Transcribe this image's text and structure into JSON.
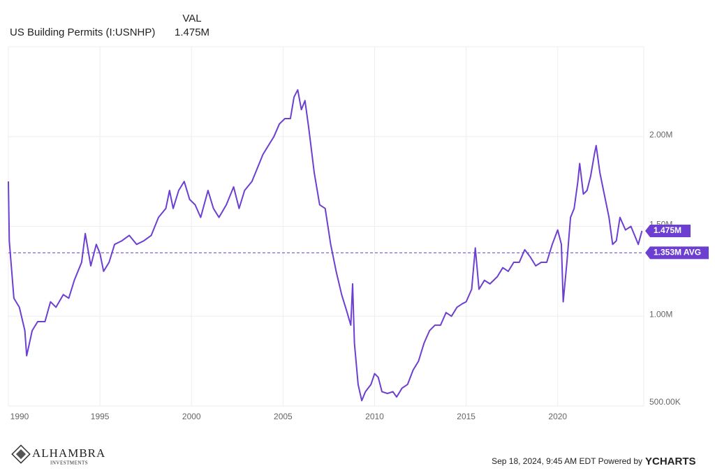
{
  "chart_data": {
    "type": "line",
    "header": {
      "column": "VAL"
    },
    "series": [
      {
        "name": "US Building Permits (I:USNHP)",
        "color": "#6c3fd1",
        "values": [
          1.75,
          1.42,
          1.1,
          1.05,
          0.92,
          0.78,
          0.92,
          0.97,
          0.97,
          1.08,
          1.05,
          1.12,
          1.1,
          1.2,
          1.3,
          1.46,
          1.28,
          1.4,
          1.35,
          1.25,
          1.3,
          1.4,
          1.42,
          1.45,
          1.4,
          1.42,
          1.45,
          1.55,
          1.6,
          1.7,
          1.6,
          1.7,
          1.75,
          1.65,
          1.62,
          1.55,
          1.7,
          1.6,
          1.55,
          1.62,
          1.72,
          1.6,
          1.7,
          1.75,
          1.85,
          1.9,
          1.95,
          2.0,
          2.07,
          2.1,
          2.1,
          2.22,
          2.26,
          2.15,
          2.2,
          2.05,
          1.8,
          1.62,
          1.6,
          1.4,
          1.25,
          1.12,
          1.02,
          0.95,
          1.18,
          0.85,
          0.62,
          0.53,
          0.58,
          0.62,
          0.68,
          0.66,
          0.58,
          0.57,
          0.58,
          0.55,
          0.6,
          0.62,
          0.7,
          0.75,
          0.85,
          0.92,
          0.95,
          0.95,
          1.02,
          1.0,
          1.05,
          1.07,
          1.08,
          1.15,
          1.38,
          1.15,
          1.2,
          1.18,
          1.22,
          1.27,
          1.25,
          1.3,
          1.3,
          1.37,
          1.33,
          1.28,
          1.3,
          1.3,
          1.4,
          1.48,
          1.4,
          1.08,
          1.3,
          1.55,
          1.6,
          1.75,
          1.85,
          1.68,
          1.7,
          1.78,
          1.9,
          1.95,
          1.8,
          1.7,
          1.55,
          1.4,
          1.42,
          1.55,
          1.48,
          1.5,
          1.45,
          1.4,
          1.475
        ]
      }
    ],
    "x": [
      1990.0,
      1990.05,
      1990.3,
      1990.6,
      1990.9,
      1991.0,
      1991.3,
      1991.6,
      1992.0,
      1992.3,
      1992.6,
      1993.0,
      1993.3,
      1993.6,
      1994.0,
      1994.2,
      1994.5,
      1994.8,
      1995.0,
      1995.2,
      1995.5,
      1995.8,
      1996.2,
      1996.6,
      1997.0,
      1997.4,
      1997.8,
      1998.2,
      1998.6,
      1998.8,
      1999.0,
      1999.3,
      1999.6,
      1999.9,
      2000.2,
      2000.5,
      2000.9,
      2001.2,
      2001.5,
      2001.9,
      2002.3,
      2002.6,
      2002.9,
      2003.3,
      2003.7,
      2003.9,
      2004.2,
      2004.5,
      2004.8,
      2005.1,
      2005.4,
      2005.6,
      2005.8,
      2006.0,
      2006.2,
      2006.4,
      2006.7,
      2007.0,
      2007.3,
      2007.6,
      2007.9,
      2008.2,
      2008.5,
      2008.7,
      2008.8,
      2008.9,
      2009.1,
      2009.3,
      2009.5,
      2009.8,
      2010.0,
      2010.2,
      2010.4,
      2010.7,
      2011.0,
      2011.2,
      2011.5,
      2011.8,
      2012.1,
      2012.4,
      2012.7,
      2013.0,
      2013.3,
      2013.6,
      2013.9,
      2014.2,
      2014.5,
      2014.8,
      2015.0,
      2015.3,
      2015.5,
      2015.7,
      2016.0,
      2016.3,
      2016.7,
      2017.0,
      2017.3,
      2017.6,
      2017.9,
      2018.2,
      2018.5,
      2018.8,
      2019.1,
      2019.4,
      2019.7,
      2020.0,
      2020.2,
      2020.3,
      2020.5,
      2020.7,
      2020.9,
      2021.1,
      2021.2,
      2021.4,
      2021.6,
      2021.8,
      2022.0,
      2022.1,
      2022.3,
      2022.5,
      2022.8,
      2023.0,
      2023.2,
      2023.4,
      2023.7,
      2024.0,
      2024.2,
      2024.4,
      2024.6
    ],
    "current": {
      "value": 1.475,
      "label": "1.475M"
    },
    "average": {
      "value": 1.353,
      "label": "1.353M AVG"
    },
    "xlim": [
      1990,
      2024.7
    ],
    "xticks": [
      1990,
      1995,
      2000,
      2005,
      2010,
      2015,
      2020
    ],
    "ylim": [
      0.5,
      2.5
    ],
    "yticks": [
      {
        "value": 0.5,
        "label": "500.00K"
      },
      {
        "value": 1,
        "label": "1.00M"
      },
      {
        "value": 1.5,
        "label": "1.50M"
      },
      {
        "value": 2,
        "label": "2.00M"
      }
    ],
    "grid": true,
    "footer": {
      "timestamp": "Sep 18, 2024, 9:45 AM EDT Powered by",
      "brand": "YCHARTS"
    },
    "logo": {
      "name": "ALHAMBRA",
      "tagline": "INVESTMENTS"
    }
  }
}
